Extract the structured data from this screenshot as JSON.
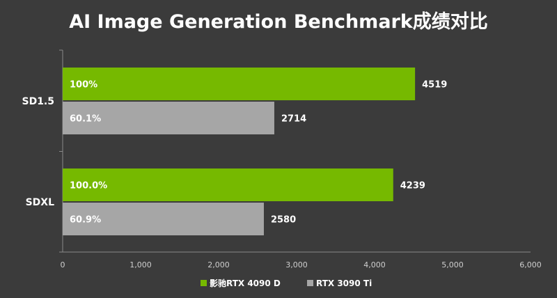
{
  "chart_data": {
    "type": "bar",
    "orientation": "horizontal",
    "title": "AI Image Generation Benchmark成绩对比",
    "categories": [
      "SD1.5",
      "SDXL"
    ],
    "series": [
      {
        "name": "影驰RTX 4090 D",
        "values": [
          4519,
          4239
        ],
        "percent_labels": [
          "100%",
          "100.0%"
        ],
        "color": "#76b900"
      },
      {
        "name": "RTX 3090 Ti",
        "values": [
          2714,
          2580
        ],
        "percent_labels": [
          "60.1%",
          "60.9%"
        ],
        "color": "#a6a6a6"
      }
    ],
    "xlim": [
      0,
      6000
    ],
    "xticks": [
      0,
      1000,
      2000,
      3000,
      4000,
      5000,
      6000
    ],
    "xtick_labels": [
      "0",
      "1,000",
      "2,000",
      "3,000",
      "4,000",
      "5,000",
      "6,000"
    ],
    "grid": false,
    "legend": "bottom",
    "background": "#3b3b3b"
  }
}
